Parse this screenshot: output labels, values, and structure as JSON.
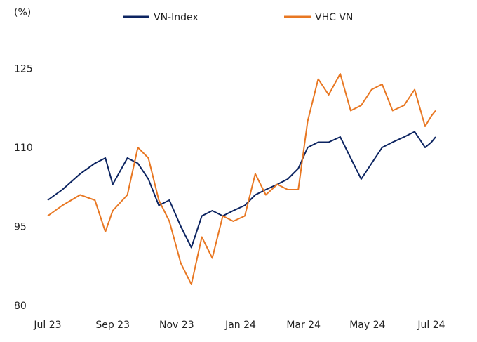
{
  "chart_data": {
    "type": "line",
    "ylabel": "(%)",
    "ylim": [
      80,
      130
    ],
    "yticks": [
      "125",
      "110",
      "95",
      "80"
    ],
    "ytick_values": [
      125,
      110,
      95,
      80
    ],
    "xticks": [
      "Jul 23",
      "Sep 23",
      "Nov 23",
      "Jan 24",
      "Mar 24",
      "May 24",
      "Jul 24"
    ],
    "xtick_dates": [
      "2023-07-01",
      "2023-09-01",
      "2023-11-01",
      "2024-01-01",
      "2024-03-01",
      "2024-05-01",
      "2024-07-01"
    ],
    "grid": false,
    "legend_position": "top",
    "series": [
      {
        "name": "VN-Index",
        "color": "#0c2461",
        "x": [
          "2023-07-01",
          "2023-07-15",
          "2023-08-01",
          "2023-08-15",
          "2023-08-25",
          "2023-09-01",
          "2023-09-15",
          "2023-09-25",
          "2023-10-05",
          "2023-10-15",
          "2023-10-25",
          "2023-11-05",
          "2023-11-15",
          "2023-11-25",
          "2023-12-05",
          "2023-12-15",
          "2023-12-25",
          "2024-01-05",
          "2024-01-15",
          "2024-01-25",
          "2024-02-05",
          "2024-02-15",
          "2024-02-25",
          "2024-03-05",
          "2024-03-15",
          "2024-03-25",
          "2024-04-05",
          "2024-04-15",
          "2024-04-25",
          "2024-05-05",
          "2024-05-15",
          "2024-05-25",
          "2024-06-05",
          "2024-06-15",
          "2024-06-25",
          "2024-07-01",
          "2024-07-05"
        ],
        "y": [
          100,
          102,
          105,
          107,
          108,
          103,
          108,
          107,
          104,
          99,
          100,
          95,
          91,
          97,
          98,
          97,
          98,
          99,
          101,
          102,
          103,
          104,
          106,
          110,
          111,
          111,
          112,
          108,
          104,
          107,
          110,
          111,
          112,
          113,
          110,
          111,
          112
        ]
      },
      {
        "name": "VHC VN",
        "color": "#e87722",
        "x": [
          "2023-07-01",
          "2023-07-15",
          "2023-08-01",
          "2023-08-15",
          "2023-08-25",
          "2023-09-01",
          "2023-09-15",
          "2023-09-25",
          "2023-10-05",
          "2023-10-15",
          "2023-10-25",
          "2023-11-05",
          "2023-11-15",
          "2023-11-25",
          "2023-12-05",
          "2023-12-15",
          "2023-12-25",
          "2024-01-05",
          "2024-01-15",
          "2024-01-25",
          "2024-02-05",
          "2024-02-15",
          "2024-02-25",
          "2024-03-05",
          "2024-03-15",
          "2024-03-25",
          "2024-04-05",
          "2024-04-15",
          "2024-04-25",
          "2024-05-05",
          "2024-05-15",
          "2024-05-25",
          "2024-06-05",
          "2024-06-15",
          "2024-06-25",
          "2024-07-01",
          "2024-07-05"
        ],
        "y": [
          97,
          99,
          101,
          100,
          94,
          98,
          101,
          110,
          108,
          100,
          96,
          88,
          84,
          93,
          89,
          97,
          96,
          97,
          105,
          101,
          103,
          102,
          102,
          115,
          123,
          120,
          124,
          117,
          118,
          121,
          122,
          117,
          118,
          121,
          114,
          116,
          117
        ]
      }
    ]
  }
}
